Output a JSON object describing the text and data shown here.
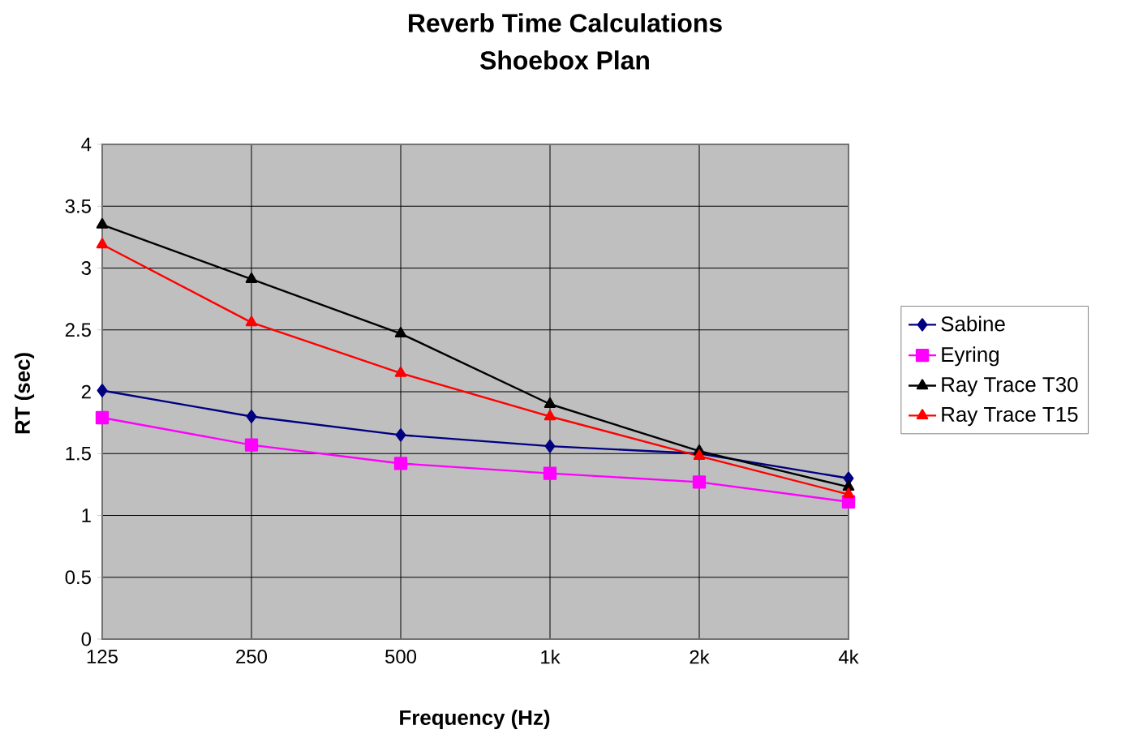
{
  "chart_data": {
    "type": "line",
    "title": "Reverb Time Calculations",
    "subtitle": "Shoebox Plan",
    "xlabel": "Frequency (Hz)",
    "ylabel": "RT (sec)",
    "categories": [
      "125",
      "250",
      "500",
      "1k",
      "2k",
      "4k"
    ],
    "series": [
      {
        "name": "Sabine",
        "color": "#000080",
        "marker": "diamond",
        "values": [
          2.01,
          1.8,
          1.65,
          1.56,
          1.5,
          1.3
        ]
      },
      {
        "name": "Eyring",
        "color": "#ff00ff",
        "marker": "square",
        "values": [
          1.79,
          1.57,
          1.42,
          1.34,
          1.27,
          1.11
        ]
      },
      {
        "name": "Ray Trace T30",
        "color": "#000000",
        "marker": "triangle",
        "values": [
          3.35,
          2.91,
          2.47,
          1.9,
          1.52,
          1.23
        ]
      },
      {
        "name": "Ray Trace T15",
        "color": "#ff0000",
        "marker": "triangle",
        "values": [
          3.19,
          2.56,
          2.15,
          1.8,
          1.48,
          1.17
        ]
      }
    ],
    "ylim": [
      0,
      4
    ],
    "yticks": [
      0,
      0.5,
      1,
      1.5,
      2,
      2.5,
      3,
      3.5,
      4
    ],
    "grid": true,
    "legend": "right",
    "line_style": "solid"
  }
}
